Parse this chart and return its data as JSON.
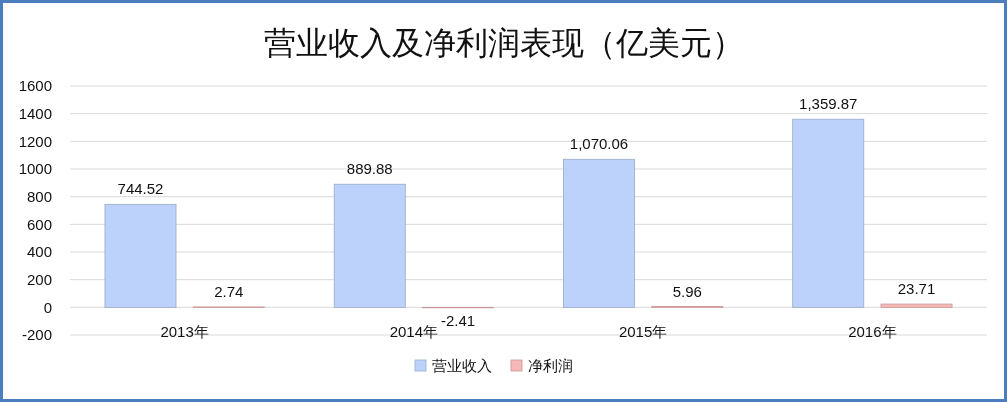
{
  "chart_data": {
    "type": "bar",
    "title": "营业收入及净利润表现（亿美元）",
    "categories": [
      "2013年",
      "2014年",
      "2015年",
      "2016年"
    ],
    "series": [
      {
        "name": "营业收入",
        "color": "#bcd2fa",
        "values": [
          744.52,
          889.88,
          1070.06,
          1359.87
        ],
        "value_labels": [
          "744.52",
          "889.88",
          "1,070.06",
          "1,359.87"
        ]
      },
      {
        "name": "净利润",
        "color": "#f9b8b8",
        "values": [
          2.74,
          -2.41,
          5.96,
          23.71
        ],
        "value_labels": [
          "2.74",
          "-2.41",
          "5.96",
          "23.71"
        ]
      }
    ],
    "ylim": [
      -200,
      1600
    ],
    "yticks": [
      -200,
      0,
      200,
      400,
      600,
      800,
      1000,
      1200,
      1400,
      1600
    ],
    "grid": "y",
    "legend": "bottom"
  }
}
